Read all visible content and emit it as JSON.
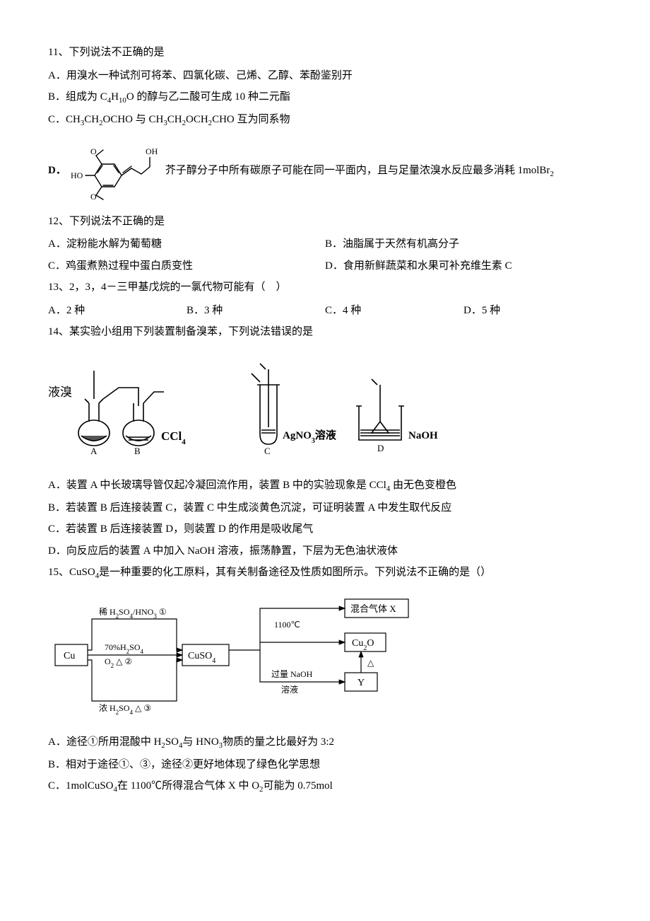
{
  "q11": {
    "stem": "11、下列说法不正确的是",
    "A": "A．用溴水一种试剂可将苯、四氯化碳、己烯、乙醇、苯酚鉴别开",
    "B_pre": "B．组成为 C",
    "B_sub1": "4",
    "B_mid1": "H",
    "B_sub2": "10",
    "B_mid2": "O 的醇与乙二酸可生成 10 种二元酯",
    "C_pre": "C．CH",
    "C_sub1": "3",
    "C_m1": "CH",
    "C_sub2": "2",
    "C_m2": "OCHO 与 CH",
    "C_sub3": "3",
    "C_m3": "CH",
    "C_sub4": "2",
    "C_m4": "OCH",
    "C_sub5": "2",
    "C_m5": "CHO 互为同系物",
    "D_label": "D．",
    "D_text": "芥子醇分子中所有碳原子可能在同一平面内，且与足量浓溴水反应最多消耗 1molBr",
    "D_sub": "2",
    "mol": {
      "stroke": "#000000",
      "stroke_width": 1.4,
      "label_OH1": "OH",
      "label_HO": "HO",
      "label_O1": "O",
      "label_O2": "O"
    }
  },
  "q12": {
    "stem": "12、下列说法不正确的是",
    "A": "A．淀粉能水解为葡萄糖",
    "B": "B．油脂属于天然有机高分子",
    "C": "C．鸡蛋煮熟过程中蛋白质变性",
    "D": "D．食用新鲜蔬菜和水果可补充维生素 C"
  },
  "q13": {
    "stem": "13、2，3，4－三甲基戊烷的一氯代物可能有（　）",
    "A": "A．2 种",
    "B": "B．3 种",
    "C": "C．4 种",
    "D": "D．5 种"
  },
  "q14": {
    "stem": "14、某实验小组用下列装置制备溴苯，下列说法错误的是",
    "A_pre": "A．装置 A 中长玻璃导管仅起冷凝回流作用，装置 B 中的实验现象是 CCl",
    "A_sub": "4",
    "A_post": " 由无色变橙色",
    "B": "B．若装置 B 后连接装置 C，装置 C 中生成淡黄色沉淀，可证明装置 A 中发生取代反应",
    "C": "C．若装置 B 后连接装置 D，则装置 D 的作用是吸收尾气",
    "D": "D．向反应后的装置 A 中加入 NaOH 溶液，振荡静置，下层为无色油状液体",
    "app": {
      "label_liq_br": "液溴",
      "label_A": "A",
      "label_B": "B",
      "label_CCl4_pre": "CCl",
      "label_CCl4_sub": "4",
      "label_C": "C",
      "label_AgNO3_pre": "AgNO",
      "label_AgNO3_sub": "3",
      "label_AgNO3_post": "溶液",
      "label_D": "D",
      "label_NaOH": "NaOH",
      "stroke": "#000000",
      "stroke_width": 1.6,
      "fill_dark": "#555555"
    }
  },
  "q15": {
    "stem_pre": "15、CuSO",
    "stem_sub": "4",
    "stem_post": "是一种重要的化工原料，其有关制备途径及性质如图所示。下列说法不正确的是（）",
    "A_pre": "A．途径①所用混酸中 H",
    "A_sub1": "2",
    "A_m1": "SO",
    "A_sub2": "4",
    "A_m2": "与 HNO",
    "A_sub3": "3",
    "A_m3": "物质的量之比最好为 3:2",
    "B": "B．相对于途径①、③，途径②更好地体现了绿色化学思想",
    "C_pre": "C．1molCuSO",
    "C_sub1": "4",
    "C_m1": "在 1100℃所得混合气体 X 中 O",
    "C_sub2": "2",
    "C_m2": "可能为 0.75mol",
    "flow": {
      "box_Cu": "Cu",
      "box_CuSO4_pre": "CuSO",
      "box_CuSO4_sub": "4",
      "box_mixgas": "混合气体 X",
      "box_Cu2O_pre": "Cu",
      "box_Cu2O_sub": "2",
      "box_Cu2O_post": "O",
      "box_Y": "Y",
      "r1_top_pre": "稀 H",
      "r1_top_s1": "2",
      "r1_top_m1": "SO",
      "r1_top_s2": "4",
      "r1_top_m2": "/HNO",
      "r1_top_s3": "3",
      "r1_top_num": "①",
      "r2_top_pre": "70%H",
      "r2_top_s1": "2",
      "r2_top_m1": "SO",
      "r2_top_s2": "4",
      "r2_bot_pre": "O",
      "r2_bot_s1": "2",
      "r2_bot_tri": "△",
      "r2_num": "②",
      "r3_pre": "浓 H",
      "r3_s1": "2",
      "r3_m1": "SO",
      "r3_s2": "4",
      "r3_tri": "△",
      "r3_num": "③",
      "r4_temp": "1100℃",
      "r5_top": "过量 NaOH",
      "r5_bot": "溶液",
      "r6_tri": "△",
      "stroke": "#000000",
      "stroke_width": 1.2,
      "font_size": 13
    }
  }
}
